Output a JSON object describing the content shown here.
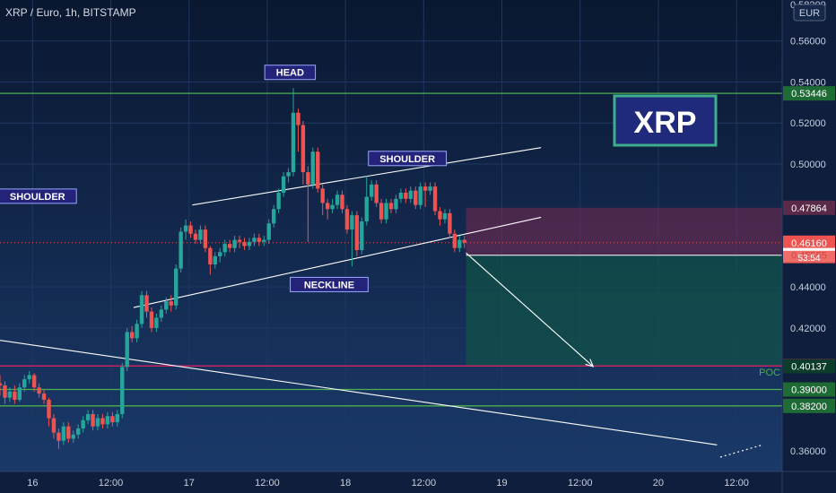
{
  "header": {
    "symbol": "XRP / Euro, 1h, BITSTAMP",
    "currency": "EUR"
  },
  "chart_data": {
    "type": "candlestick",
    "title": "XRP / Euro, 1h, BITSTAMP",
    "ylim": [
      0.35,
      0.58
    ],
    "y_ticks": [
      0.36,
      0.42,
      0.44,
      0.5,
      0.52,
      0.54,
      0.56
    ],
    "y_tick_labels": [
      "0.36000",
      "0.42000",
      "0.44000",
      "0.50000",
      "0.52000",
      "0.54000",
      "0.56000"
    ],
    "top_label": "0.58200",
    "x_ticks": [
      {
        "label": "16",
        "hour": 24
      },
      {
        "label": "12:00",
        "hour": 36
      },
      {
        "label": "17",
        "hour": 48
      },
      {
        "label": "12:00",
        "hour": 60
      },
      {
        "label": "18",
        "hour": 72
      },
      {
        "label": "12:00",
        "hour": 84
      },
      {
        "label": "19",
        "hour": 96
      },
      {
        "label": "12:00",
        "hour": 108
      },
      {
        "label": "20",
        "hour": 120
      },
      {
        "label": "12:00",
        "hour": 132
      }
    ],
    "x_hours_range": [
      19,
      139
    ],
    "candles": [
      [
        19.0,
        0.393,
        0.392,
        0.387,
        0.397
      ],
      [
        19.75,
        0.392,
        0.386,
        0.383,
        0.394
      ],
      [
        20.5,
        0.386,
        0.389,
        0.384,
        0.391
      ],
      [
        21.25,
        0.389,
        0.385,
        0.383,
        0.392
      ],
      [
        22.0,
        0.385,
        0.391,
        0.384,
        0.393
      ],
      [
        22.75,
        0.391,
        0.395,
        0.389,
        0.397
      ],
      [
        23.5,
        0.395,
        0.397,
        0.393,
        0.399
      ],
      [
        24.25,
        0.397,
        0.391,
        0.389,
        0.398
      ],
      [
        25.0,
        0.391,
        0.388,
        0.386,
        0.393
      ],
      [
        25.75,
        0.388,
        0.385,
        0.383,
        0.39
      ],
      [
        26.5,
        0.385,
        0.376,
        0.372,
        0.386
      ],
      [
        27.25,
        0.376,
        0.369,
        0.366,
        0.378
      ],
      [
        28.0,
        0.369,
        0.365,
        0.361,
        0.371
      ],
      [
        28.75,
        0.365,
        0.372,
        0.363,
        0.374
      ],
      [
        29.5,
        0.372,
        0.366,
        0.364,
        0.374
      ],
      [
        30.25,
        0.366,
        0.368,
        0.364,
        0.37
      ],
      [
        31.0,
        0.368,
        0.371,
        0.366,
        0.373
      ],
      [
        31.75,
        0.371,
        0.375,
        0.369,
        0.377
      ],
      [
        32.5,
        0.375,
        0.378,
        0.373,
        0.38
      ],
      [
        33.25,
        0.378,
        0.372,
        0.37,
        0.38
      ],
      [
        34.0,
        0.372,
        0.376,
        0.37,
        0.378
      ],
      [
        34.75,
        0.376,
        0.373,
        0.371,
        0.378
      ],
      [
        35.5,
        0.373,
        0.377,
        0.371,
        0.379
      ],
      [
        36.25,
        0.377,
        0.374,
        0.372,
        0.379
      ],
      [
        37.0,
        0.374,
        0.378,
        0.372,
        0.38
      ],
      [
        37.75,
        0.378,
        0.401,
        0.376,
        0.403
      ],
      [
        38.5,
        0.401,
        0.418,
        0.399,
        0.42
      ],
      [
        39.25,
        0.418,
        0.415,
        0.413,
        0.421
      ],
      [
        40.0,
        0.415,
        0.422,
        0.413,
        0.424
      ],
      [
        40.75,
        0.422,
        0.436,
        0.42,
        0.438
      ],
      [
        41.5,
        0.436,
        0.428,
        0.425,
        0.438
      ],
      [
        42.25,
        0.428,
        0.42,
        0.418,
        0.43
      ],
      [
        43.0,
        0.42,
        0.425,
        0.418,
        0.427
      ],
      [
        43.75,
        0.425,
        0.429,
        0.423,
        0.431
      ],
      [
        44.5,
        0.429,
        0.433,
        0.427,
        0.435
      ],
      [
        45.25,
        0.433,
        0.431,
        0.428,
        0.436
      ],
      [
        46.0,
        0.431,
        0.449,
        0.429,
        0.451
      ],
      [
        46.75,
        0.449,
        0.467,
        0.447,
        0.469
      ],
      [
        47.5,
        0.467,
        0.47,
        0.463,
        0.473
      ],
      [
        48.25,
        0.47,
        0.466,
        0.464,
        0.472
      ],
      [
        49.0,
        0.466,
        0.463,
        0.461,
        0.468
      ],
      [
        49.75,
        0.463,
        0.468,
        0.461,
        0.47
      ],
      [
        50.5,
        0.468,
        0.459,
        0.457,
        0.47
      ],
      [
        51.25,
        0.459,
        0.451,
        0.446,
        0.46
      ],
      [
        52.0,
        0.451,
        0.455,
        0.449,
        0.457
      ],
      [
        52.75,
        0.455,
        0.457,
        0.452,
        0.459
      ],
      [
        53.5,
        0.457,
        0.461,
        0.455,
        0.463
      ],
      [
        54.25,
        0.461,
        0.459,
        0.457,
        0.463
      ],
      [
        55.0,
        0.459,
        0.463,
        0.457,
        0.465
      ],
      [
        55.75,
        0.463,
        0.462,
        0.459,
        0.465
      ],
      [
        56.5,
        0.462,
        0.46,
        0.458,
        0.464
      ],
      [
        57.25,
        0.46,
        0.462,
        0.458,
        0.464
      ],
      [
        58.0,
        0.462,
        0.464,
        0.46,
        0.466
      ],
      [
        58.75,
        0.464,
        0.462,
        0.46,
        0.466
      ],
      [
        59.5,
        0.462,
        0.463,
        0.46,
        0.465
      ],
      [
        60.25,
        0.463,
        0.471,
        0.461,
        0.473
      ],
      [
        61.0,
        0.471,
        0.478,
        0.469,
        0.48
      ],
      [
        61.75,
        0.478,
        0.486,
        0.476,
        0.488
      ],
      [
        62.5,
        0.486,
        0.494,
        0.484,
        0.496
      ],
      [
        63.25,
        0.494,
        0.496,
        0.491,
        0.498
      ],
      [
        64.0,
        0.496,
        0.525,
        0.494,
        0.537
      ],
      [
        64.75,
        0.525,
        0.519,
        0.506,
        0.527
      ],
      [
        65.5,
        0.519,
        0.496,
        0.49,
        0.521
      ],
      [
        66.25,
        0.496,
        0.49,
        0.462,
        0.499
      ],
      [
        67.0,
        0.49,
        0.506,
        0.488,
        0.508
      ],
      [
        67.75,
        0.506,
        0.488,
        0.486,
        0.508
      ],
      [
        68.5,
        0.488,
        0.481,
        0.475,
        0.49
      ],
      [
        69.25,
        0.481,
        0.478,
        0.473,
        0.483
      ],
      [
        70.0,
        0.478,
        0.48,
        0.476,
        0.483
      ],
      [
        70.75,
        0.48,
        0.485,
        0.478,
        0.487
      ],
      [
        71.5,
        0.485,
        0.478,
        0.476,
        0.487
      ],
      [
        72.25,
        0.478,
        0.468,
        0.466,
        0.48
      ],
      [
        73.0,
        0.468,
        0.475,
        0.45,
        0.477
      ],
      [
        73.75,
        0.475,
        0.458,
        0.455,
        0.477
      ],
      [
        74.5,
        0.458,
        0.472,
        0.456,
        0.474
      ],
      [
        75.25,
        0.472,
        0.484,
        0.47,
        0.494
      ],
      [
        76.0,
        0.484,
        0.49,
        0.482,
        0.492
      ],
      [
        76.75,
        0.49,
        0.481,
        0.479,
        0.492
      ],
      [
        77.5,
        0.481,
        0.473,
        0.471,
        0.483
      ],
      [
        78.25,
        0.473,
        0.481,
        0.471,
        0.483
      ],
      [
        79.0,
        0.481,
        0.478,
        0.476,
        0.483
      ],
      [
        79.75,
        0.478,
        0.483,
        0.476,
        0.485
      ],
      [
        80.5,
        0.483,
        0.486,
        0.481,
        0.488
      ],
      [
        81.25,
        0.486,
        0.483,
        0.481,
        0.488
      ],
      [
        82.0,
        0.483,
        0.487,
        0.481,
        0.489
      ],
      [
        82.75,
        0.487,
        0.48,
        0.478,
        0.489
      ],
      [
        83.5,
        0.48,
        0.489,
        0.478,
        0.491
      ],
      [
        84.25,
        0.489,
        0.487,
        0.479,
        0.491
      ],
      [
        85.0,
        0.487,
        0.489,
        0.485,
        0.491
      ],
      [
        85.75,
        0.489,
        0.477,
        0.475,
        0.491
      ],
      [
        86.5,
        0.477,
        0.473,
        0.47,
        0.479
      ],
      [
        87.25,
        0.473,
        0.476,
        0.471,
        0.478
      ],
      [
        88.0,
        0.476,
        0.466,
        0.464,
        0.478
      ],
      [
        88.75,
        0.466,
        0.459,
        0.457,
        0.468
      ],
      [
        89.5,
        0.459,
        0.463,
        0.457,
        0.465
      ],
      [
        90.25,
        0.463,
        0.4616,
        0.459,
        0.465
      ]
    ],
    "horizontal_lines": [
      {
        "value": 0.53446,
        "color": "#4caf50",
        "label": "0.53446"
      },
      {
        "value": 0.40148,
        "color": "#e91e63",
        "label": "0.40148"
      },
      {
        "value": 0.39,
        "color": "#4caf50",
        "label": "0.39000"
      },
      {
        "value": 0.382,
        "color": "#4caf50",
        "label": "0.38200"
      }
    ],
    "price_labels": [
      {
        "value": 0.47864,
        "text": "0.47864",
        "bg": "#5a2a48",
        "color": "#ffffff"
      },
      {
        "value": 0.4616,
        "text": "0.46160",
        "bg": "#ef5350",
        "color": "#ffffff"
      },
      {
        "value": 0.45555,
        "text": "0.45555",
        "bg": "#ffffff",
        "color": "#000000"
      },
      {
        "value": 0.40137,
        "text": "0.40137",
        "bg": "#0b3d2a",
        "color": "#ffffff"
      }
    ],
    "countdown": {
      "text": "53:54",
      "value": 0.4558
    },
    "poc_label": {
      "text": "POC",
      "value": 0.4028
    },
    "current_price": 0.4616,
    "trade_box": {
      "x0": 90.5,
      "x1": 139,
      "entry": 0.4555,
      "stop": 0.47864,
      "target": 0.40148
    },
    "trendlines": [
      {
        "name": "shoulder-resistance",
        "x0": 48.5,
        "y0": 0.48,
        "x1": 102,
        "y1": 0.508
      },
      {
        "name": "neckline",
        "x0": 39.5,
        "y0": 0.43,
        "x1": 102,
        "y1": 0.474
      },
      {
        "name": "long-downtrend",
        "x0": 19,
        "y0": 0.414,
        "x1": 129,
        "y1": 0.363
      },
      {
        "name": "forecast-arrow",
        "x0": 90.5,
        "y0": 0.4566,
        "x1": 110,
        "y1": 0.4012
      }
    ],
    "annotations": [
      {
        "text": "HEAD",
        "x": 63.5,
        "y": 0.5447
      },
      {
        "text": "SHOULDER",
        "x": 24.75,
        "y": 0.4843
      },
      {
        "text": "SHOULDER",
        "x": 81.5,
        "y": 0.5027
      },
      {
        "text": "NECKLINE",
        "x": 69.5,
        "y": 0.4412
      }
    ],
    "brand_box": {
      "text": "XRP"
    },
    "colors": {
      "up": "#26a69a",
      "down": "#ef5350",
      "bg_top": "#0d1b3a",
      "bg_bottom": "#1b3a6a",
      "grid": "#1e3760"
    }
  }
}
